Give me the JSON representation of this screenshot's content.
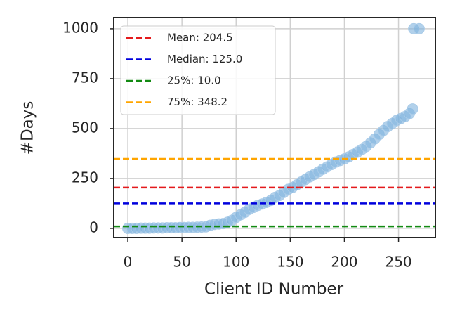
{
  "chart_data": {
    "type": "scatter",
    "xlabel": "Client ID Number",
    "ylabel": "#Days",
    "x": [
      0,
      4,
      8,
      12,
      16,
      20,
      24,
      28,
      32,
      36,
      40,
      44,
      48,
      52,
      56,
      60,
      64,
      68,
      72,
      76,
      80,
      84,
      88,
      92,
      96,
      100,
      104,
      108,
      112,
      116,
      120,
      124,
      128,
      132,
      136,
      140,
      144,
      148,
      152,
      156,
      160,
      164,
      168,
      172,
      176,
      180,
      184,
      188,
      192,
      196,
      200,
      204,
      208,
      212,
      216,
      220,
      224,
      228,
      232,
      236,
      240,
      244,
      248,
      252,
      256,
      260,
      263,
      264,
      269
    ],
    "y": [
      0,
      0,
      0,
      1,
      1,
      1,
      2,
      2,
      2,
      3,
      3,
      3,
      4,
      4,
      5,
      5,
      6,
      7,
      8,
      15,
      20,
      22,
      24,
      30,
      40,
      55,
      68,
      80,
      95,
      105,
      115,
      122,
      130,
      140,
      155,
      165,
      180,
      195,
      205,
      218,
      232,
      245,
      258,
      270,
      283,
      296,
      308,
      320,
      332,
      340,
      348,
      358,
      370,
      382,
      395,
      410,
      428,
      448,
      470,
      490,
      510,
      525,
      540,
      550,
      560,
      575,
      598,
      1000,
      1000
    ],
    "color": "#7fb2de",
    "xlim": [
      -13,
      284
    ],
    "ylim": [
      -46,
      1056
    ],
    "xticks": [
      0,
      50,
      100,
      150,
      200,
      250
    ],
    "yticks": [
      0,
      250,
      500,
      750,
      1000
    ],
    "grid": true,
    "hlines": [
      {
        "label": "Mean: 204.5",
        "value": 204.5,
        "color": "#e41a1c"
      },
      {
        "label": "Median: 125.0",
        "value": 125.0,
        "color": "#0000dd"
      },
      {
        "label": "25%: 10.0",
        "value": 10.0,
        "color": "#138a13"
      },
      {
        "label": "75%: 348.2",
        "value": 348.2,
        "color": "#ffa500"
      }
    ],
    "legend": "upper left"
  }
}
